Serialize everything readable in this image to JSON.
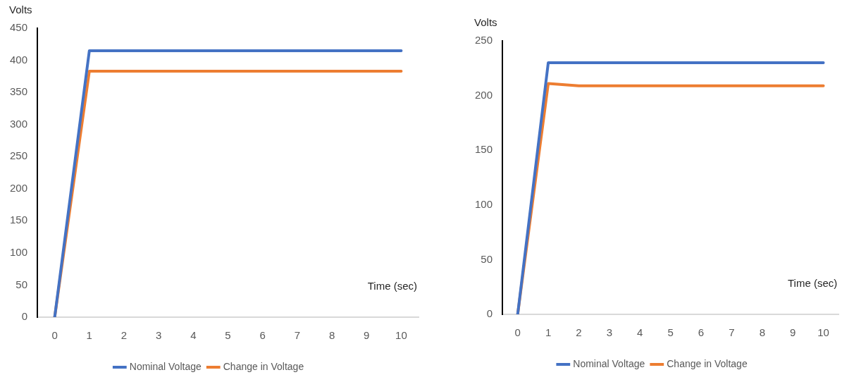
{
  "chart_data": [
    {
      "type": "line",
      "ylabel": "Volts",
      "xlabel": "Time (sec)",
      "categories": [
        "0",
        "1",
        "2",
        "3",
        "4",
        "5",
        "6",
        "7",
        "8",
        "9",
        "10"
      ],
      "ylim": [
        0,
        450
      ],
      "yticks": [
        0,
        50,
        100,
        150,
        200,
        250,
        300,
        350,
        400,
        450
      ],
      "grid": false,
      "legend": "bottom",
      "marker": "none",
      "line_style": "solid",
      "series": [
        {
          "name": "Nominal Voltage",
          "color": "#4472c4",
          "values": [
            0,
            415,
            415,
            415,
            415,
            415,
            415,
            415,
            415,
            415,
            415
          ]
        },
        {
          "name": "Change in Voltage",
          "color": "#ed7d31",
          "values": [
            0,
            383,
            383,
            383,
            383,
            383,
            383,
            383,
            383,
            383,
            383
          ]
        }
      ]
    },
    {
      "type": "line",
      "ylabel": "Volts",
      "xlabel": "Time (sec)",
      "categories": [
        "0",
        "1",
        "2",
        "3",
        "4",
        "5",
        "6",
        "7",
        "8",
        "9",
        "10"
      ],
      "ylim": [
        0,
        250
      ],
      "yticks": [
        0,
        50,
        100,
        150,
        200,
        250
      ],
      "grid": false,
      "legend": "bottom",
      "marker": "none",
      "line_style": "solid",
      "series": [
        {
          "name": "Nominal Voltage",
          "color": "#4472c4",
          "values": [
            0,
            230,
            230,
            230,
            230,
            230,
            230,
            230,
            230,
            230,
            230
          ]
        },
        {
          "name": "Change in Voltage",
          "color": "#ed7d31",
          "values": [
            0,
            211,
            209,
            209,
            209,
            209,
            209,
            209,
            209,
            209,
            209
          ]
        }
      ]
    }
  ]
}
